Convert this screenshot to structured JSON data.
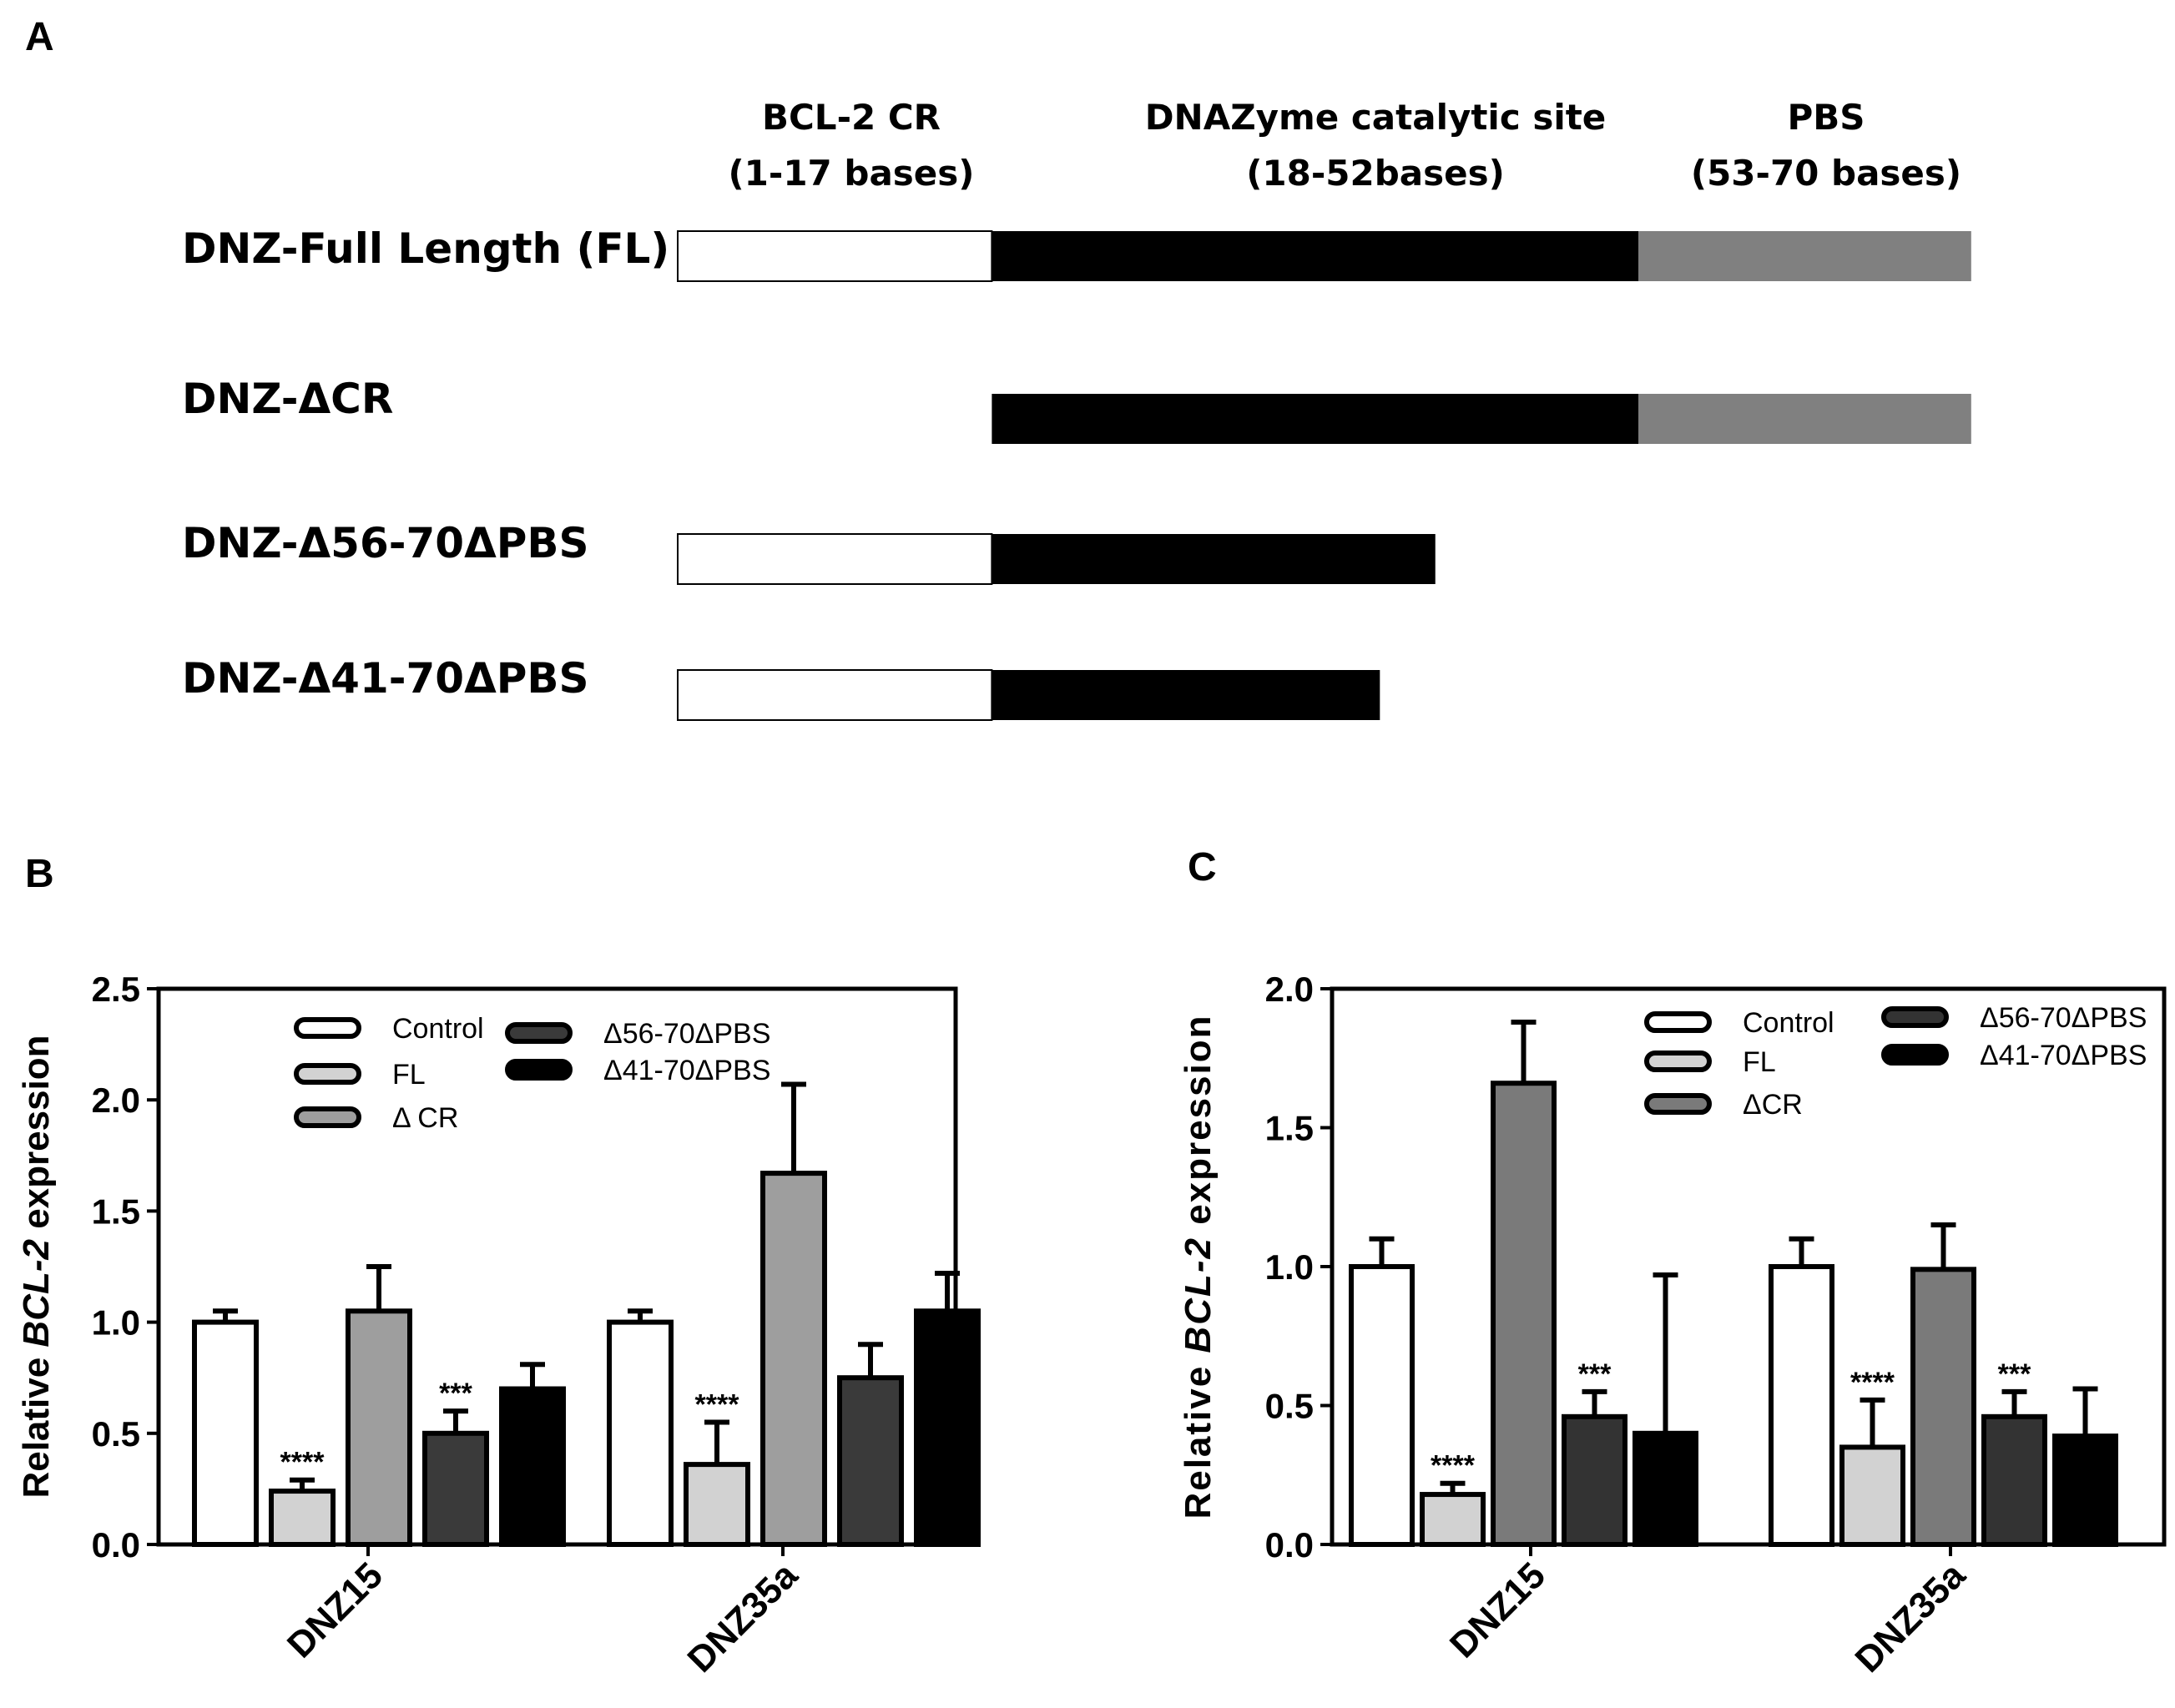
{
  "colors": {
    "frag_cr": "#ffffff",
    "frag_catalytic": "#000000",
    "frag_pbs": "#808080",
    "b_series": [
      "#ffffff",
      "#d2d2d2",
      "#9e9e9e",
      "#3a3a3a",
      "#000000"
    ],
    "c_series": [
      "#ffffff",
      "#d2d2d2",
      "#7a7a7a",
      "#333333",
      "#000000"
    ]
  },
  "panel_a": {
    "label": "A",
    "headers": [
      {
        "line1": "BCL-2 CR",
        "line2": "(1-17 bases)"
      },
      {
        "line1": "DNAZyme catalytic site",
        "line2": "(18-52bases)"
      },
      {
        "line1": "PBS",
        "line2": "(53-70 bases)"
      }
    ],
    "constructs": [
      {
        "name": "DNZ-Full Length (FL)",
        "segments": [
          {
            "part": "cr",
            "start": 1,
            "end": 17
          },
          {
            "part": "catalytic",
            "start": 18,
            "end": 52
          },
          {
            "part": "pbs",
            "start": 53,
            "end": 70
          }
        ]
      },
      {
        "name": "DNZ-ΔCR",
        "segments": [
          {
            "part": "catalytic",
            "start": 18,
            "end": 52
          },
          {
            "part": "pbs",
            "start": 53,
            "end": 70
          }
        ]
      },
      {
        "name": "DNZ-Δ56-70ΔPBS",
        "segments": [
          {
            "part": "cr",
            "start": 1,
            "end": 17
          },
          {
            "part": "catalytic",
            "start": 18,
            "end": 41
          }
        ]
      },
      {
        "name": "DNZ-Δ41-70ΔPBS",
        "segments": [
          {
            "part": "cr",
            "start": 1,
            "end": 17
          },
          {
            "part": "catalytic",
            "start": 18,
            "end": 38
          }
        ]
      }
    ]
  },
  "chart_data": [
    {
      "panel": "B",
      "type": "bar",
      "title": "",
      "xlabel": "",
      "ylabel_prefix": "Relative ",
      "ylabel_gene": "BCL-2",
      "ylabel_suffix": " expression",
      "ylim": [
        0,
        2.5
      ],
      "yticks": [
        "0.0",
        "0.5",
        "1.0",
        "1.5",
        "2.0",
        "2.5"
      ],
      "categories": [
        "DNZ15",
        "DNZ35a"
      ],
      "legend": [
        "Control",
        "FL",
        "Δ CR",
        "Δ56-70ΔPBS",
        "Δ41-70ΔPBS"
      ],
      "series": [
        {
          "name": "Control",
          "values": [
            1.0,
            1.0
          ],
          "errors": [
            0.05,
            0.05
          ],
          "sig": [
            "",
            ""
          ]
        },
        {
          "name": "FL",
          "values": [
            0.24,
            0.36
          ],
          "errors": [
            0.05,
            0.19
          ],
          "sig": [
            "****",
            "****"
          ]
        },
        {
          "name": "Δ CR",
          "values": [
            1.05,
            1.67
          ],
          "errors": [
            0.2,
            0.4
          ],
          "sig": [
            "",
            ""
          ]
        },
        {
          "name": "Δ56-70ΔPBS",
          "values": [
            0.5,
            0.75
          ],
          "errors": [
            0.1,
            0.15
          ],
          "sig": [
            "***",
            ""
          ]
        },
        {
          "name": "Δ41-70ΔPBS",
          "values": [
            0.7,
            1.05
          ],
          "errors": [
            0.11,
            0.17
          ],
          "sig": [
            "",
            ""
          ]
        }
      ]
    },
    {
      "panel": "C",
      "type": "bar",
      "title": "",
      "xlabel": "",
      "ylabel_prefix": "Relative ",
      "ylabel_gene": "BCL-2",
      "ylabel_suffix": " expression",
      "ylim": [
        0,
        2.0
      ],
      "yticks": [
        "0.0",
        "0.5",
        "1.0",
        "1.5",
        "2.0"
      ],
      "categories": [
        "DNZ15",
        "DNZ35a"
      ],
      "legend": [
        "Control",
        "FL",
        "ΔCR",
        "Δ56-70ΔPBS",
        "Δ41-70ΔPBS"
      ],
      "series": [
        {
          "name": "Control",
          "values": [
            1.0,
            1.0
          ],
          "errors": [
            0.1,
            0.1
          ],
          "sig": [
            "",
            ""
          ]
        },
        {
          "name": "FL",
          "values": [
            0.18,
            0.35
          ],
          "errors": [
            0.04,
            0.17
          ],
          "sig": [
            "****",
            "****"
          ]
        },
        {
          "name": "ΔCR",
          "values": [
            1.66,
            0.99
          ],
          "errors": [
            0.22,
            0.16
          ],
          "sig": [
            "",
            ""
          ]
        },
        {
          "name": "Δ56-70ΔPBS",
          "values": [
            0.46,
            0.46
          ],
          "errors": [
            0.09,
            0.09
          ],
          "sig": [
            "***",
            "***"
          ]
        },
        {
          "name": "Δ41-70ΔPBS",
          "values": [
            0.4,
            0.39
          ],
          "errors": [
            0.57,
            0.17
          ],
          "sig": [
            "",
            ""
          ]
        }
      ]
    }
  ]
}
